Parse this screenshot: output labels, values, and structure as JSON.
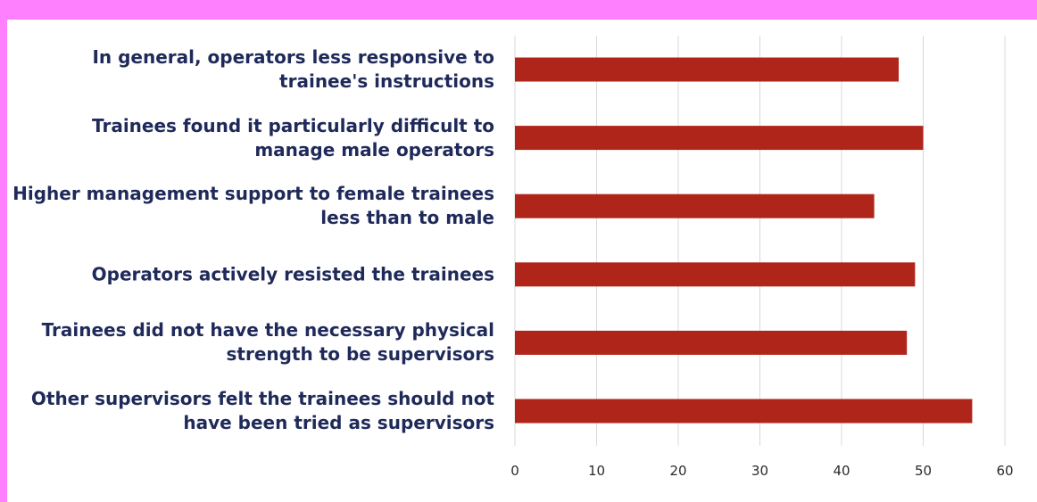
{
  "chart_data": {
    "type": "bar",
    "orientation": "horizontal",
    "categories": [
      "In general, operators less responsive to trainee's instructions",
      "Trainees found it particularly difficult to manage male operators",
      "Higher management support to female trainees less than to male",
      "Operators actively resisted the trainees",
      "Trainees did not have the necessary physical strength to be supervisors",
      "Other supervisors felt the trainees should not have been tried as supervisors"
    ],
    "values": [
      47,
      50,
      44,
      49,
      48,
      56
    ],
    "color": "#b0251a",
    "xlim": [
      0,
      60
    ],
    "xticks": [
      0,
      10,
      20,
      30,
      40,
      50,
      60
    ],
    "grid": true
  }
}
